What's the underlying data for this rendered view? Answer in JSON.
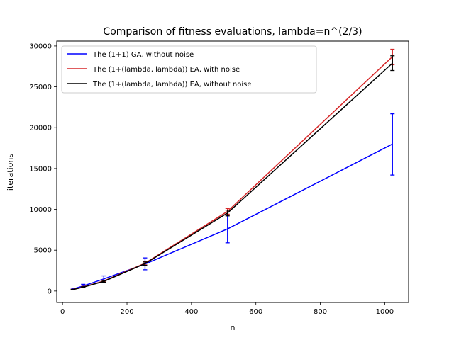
{
  "chart_data": {
    "type": "line",
    "title": "Comparison of fitness evaluations, lambda=n^(2/3)",
    "xlabel": "n",
    "ylabel": "iterations",
    "xlim": [
      -18,
      1074
    ],
    "ylim": [
      -1400,
      30600
    ],
    "xticks": [
      0,
      200,
      400,
      600,
      800,
      1000
    ],
    "yticks": [
      0,
      5000,
      10000,
      15000,
      20000,
      25000,
      30000
    ],
    "x": [
      32,
      64,
      128,
      256,
      512,
      1024
    ],
    "legend_position": "upper-left",
    "series": [
      {
        "name": "The (1+1) GA, without noise",
        "color": "#0000ff",
        "values": [
          250,
          620,
          1480,
          3300,
          7600,
          18000
        ],
        "err_low": [
          130,
          420,
          1050,
          2600,
          5900,
          14200
        ],
        "err_high": [
          360,
          820,
          1850,
          4050,
          9300,
          21700
        ]
      },
      {
        "name": "The (1+(lambda, lambda)) EA, with noise",
        "color": "#d62728",
        "values": [
          180,
          500,
          1230,
          3400,
          9750,
          28700
        ],
        "err_low": [
          150,
          440,
          1130,
          3200,
          9400,
          27700
        ],
        "err_high": [
          210,
          560,
          1330,
          3600,
          10100,
          29600
        ]
      },
      {
        "name": "The (1+(lambda, lambda)) EA, without noise",
        "color": "#000000",
        "values": [
          170,
          470,
          1180,
          3350,
          9550,
          27900
        ],
        "err_low": [
          140,
          410,
          1080,
          3150,
          9200,
          27000
        ],
        "err_high": [
          200,
          530,
          1280,
          3550,
          9900,
          28800
        ]
      }
    ]
  }
}
